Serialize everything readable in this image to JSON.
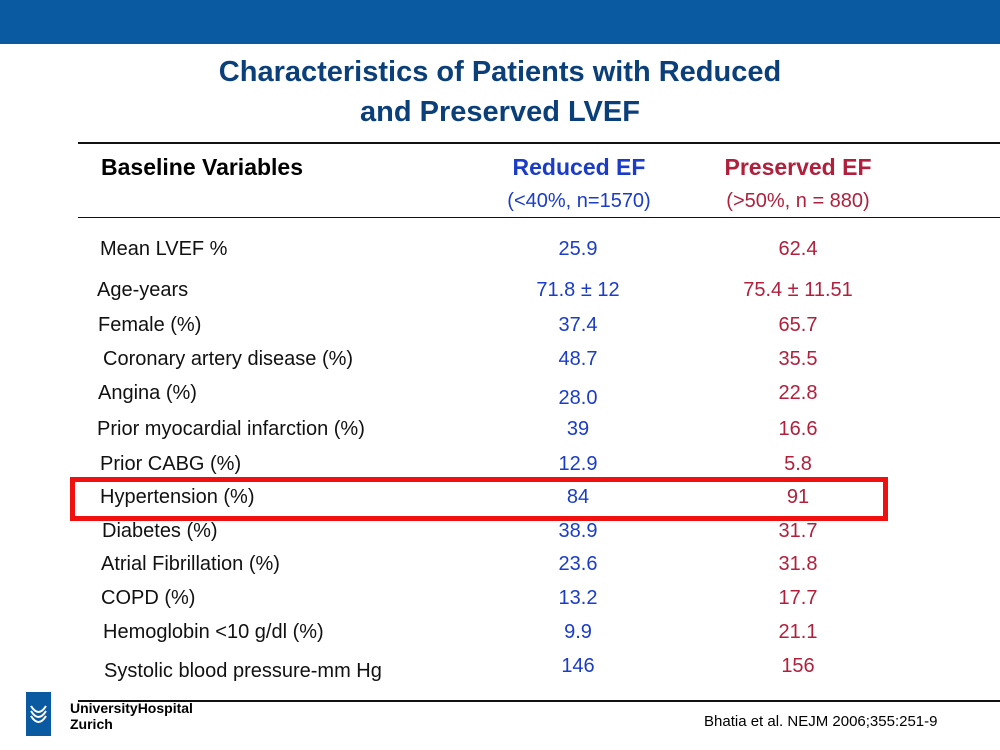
{
  "slide": {
    "title_line1": "Characteristics of Patients with Reduced",
    "title_line2": "and Preserved LVEF"
  },
  "table": {
    "header": {
      "variables": "Baseline Variables",
      "reduced": "Reduced EF",
      "reduced_sub": "(<40%, n=1570)",
      "preserved": "Preserved EF",
      "preserved_sub": "(>50%, n = 880)"
    },
    "rows": [
      {
        "label": "Mean LVEF %",
        "reduced": "25.9",
        "preserved": "62.4"
      },
      {
        "label": "Age-years",
        "reduced": "71.8 ± 12",
        "preserved": "75.4 ± 11.51"
      },
      {
        "label": "Female (%)",
        "reduced": "37.4",
        "preserved": "65.7"
      },
      {
        "label": "Coronary artery disease  (%)",
        "reduced": "48.7",
        "preserved": "35.5"
      },
      {
        "label": "Angina (%)",
        "reduced": "28.0",
        "preserved": "22.8"
      },
      {
        "label": "Prior myocardial infarction (%)",
        "reduced": "39",
        "preserved": "16.6"
      },
      {
        "label": "Prior CABG (%)",
        "reduced": "12.9",
        "preserved": "5.8"
      },
      {
        "label": "Hypertension (%)",
        "reduced": "84",
        "preserved": "91"
      },
      {
        "label": "Diabetes (%)",
        "reduced": "38.9",
        "preserved": "31.7"
      },
      {
        "label": "Atrial Fibrillation (%)",
        "reduced": "23.6",
        "preserved": "31.8"
      },
      {
        "label": "COPD (%)",
        "reduced": "13.2",
        "preserved": "17.7"
      },
      {
        "label": "Hemoglobin <10 g/dl (%)",
        "reduced": "9.9",
        "preserved": "21.1"
      },
      {
        "label": "Systolic blood pressure-mm Hg",
        "reduced": "146",
        "preserved": "156"
      }
    ]
  },
  "footer": {
    "org_line1": "UniversityHospital",
    "org_line2": "Zurich",
    "citation": "Bhatia et al. NEJM 2006;355:251-9"
  },
  "colors": {
    "top_bar": "#0a5aa2",
    "title": "#0b3f7a",
    "reduced": "#1a3cc8",
    "preserved": "#b0203c",
    "highlight": "#f01010"
  }
}
